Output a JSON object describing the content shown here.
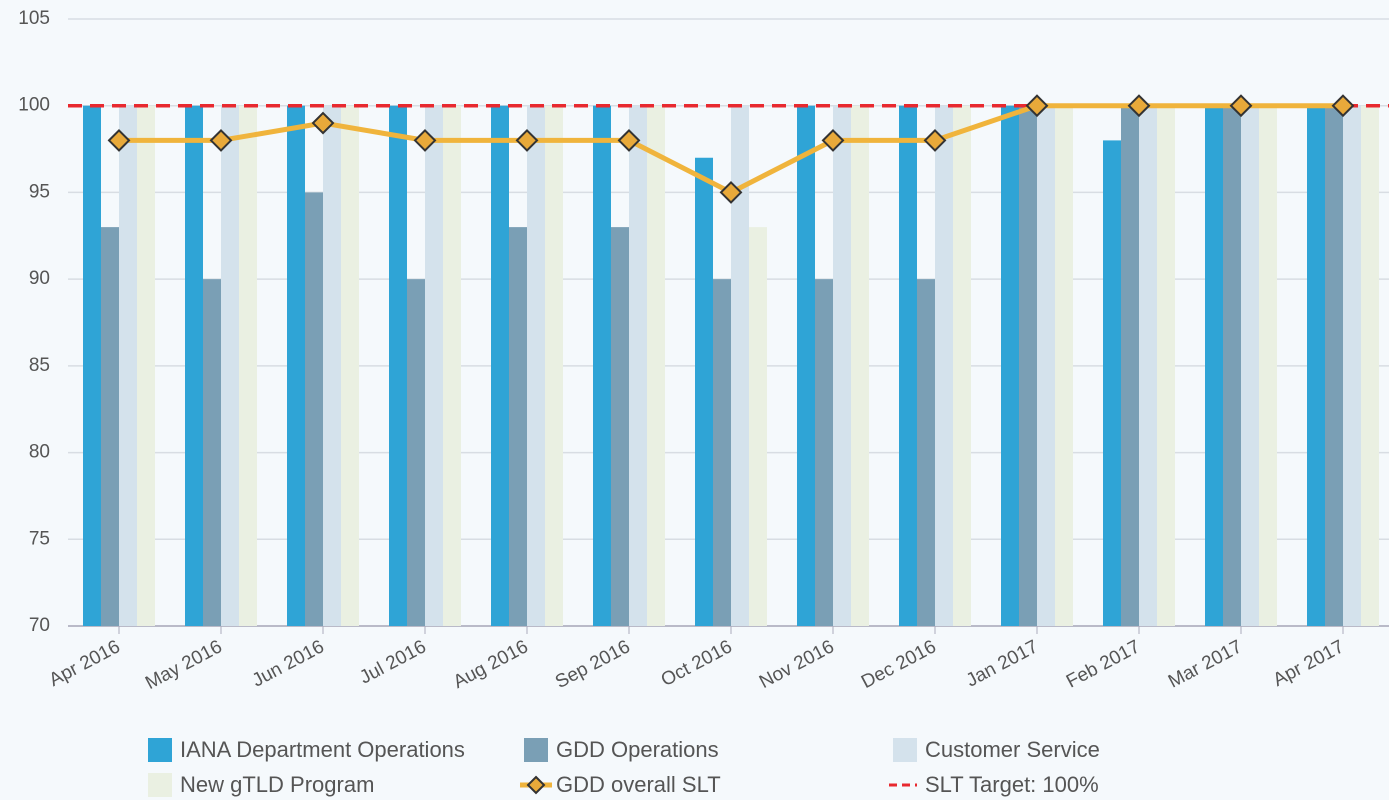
{
  "chart_data": {
    "type": "bar",
    "categories": [
      "Apr 2016",
      "May 2016",
      "Jun 2016",
      "Jul 2016",
      "Aug 2016",
      "Sep 2016",
      "Oct 2016",
      "Nov 2016",
      "Dec 2016",
      "Jan 2017",
      "Feb 2017",
      "Mar 2017",
      "Apr 2017"
    ],
    "series": [
      {
        "name": "IANA Department Operations",
        "color": "#2fa4d6",
        "values": [
          100,
          100,
          100,
          100,
          100,
          100,
          97,
          100,
          100,
          100,
          98,
          100,
          100
        ]
      },
      {
        "name": "GDD Operations",
        "color": "#7a9fb5",
        "values": [
          93,
          90,
          95,
          90,
          93,
          93,
          90,
          90,
          90,
          100,
          100,
          100,
          100
        ]
      },
      {
        "name": "Customer Service",
        "color": "#d4e2ec",
        "values": [
          100,
          100,
          100,
          100,
          100,
          100,
          100,
          100,
          100,
          100,
          100,
          100,
          100
        ]
      },
      {
        "name": "New gTLD Program",
        "color": "#eaf0e2",
        "values": [
          100,
          100,
          100,
          100,
          100,
          100,
          93,
          100,
          100,
          100,
          100,
          100,
          100
        ]
      },
      {
        "name": "GDD overall SLT",
        "type": "line",
        "color": "#f0b43c",
        "values": [
          98,
          98,
          99,
          98,
          98,
          98,
          95,
          98,
          98,
          100,
          100,
          100,
          100
        ]
      }
    ],
    "target": {
      "name": "SLT Target: 100%",
      "value": 100,
      "color": "#e8292f"
    },
    "ylim": [
      70,
      105
    ],
    "yticks": [
      70,
      75,
      80,
      85,
      90,
      95,
      100,
      105
    ],
    "grid": true
  }
}
